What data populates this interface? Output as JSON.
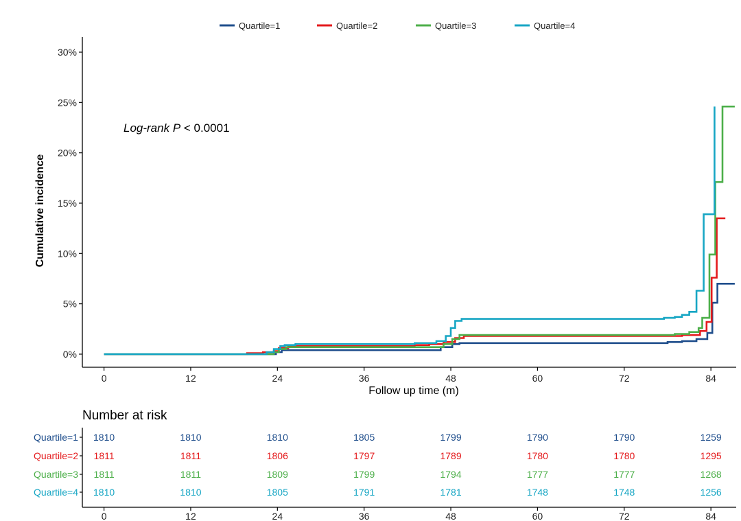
{
  "chart_data": {
    "type": "line",
    "xlabel": "Follow up time (m)",
    "ylabel": "Cumulative incidence",
    "xlim": [
      -3,
      87.5
    ],
    "ylim": [
      -1.3,
      31.5
    ],
    "x_ticks": [
      "0",
      "12",
      "24",
      "36",
      "48",
      "60",
      "72",
      "84"
    ],
    "x_tick_values": [
      0,
      12,
      24,
      36,
      48,
      60,
      72,
      84
    ],
    "y_ticks": [
      "0%",
      "5%",
      "10%",
      "15%",
      "20%",
      "25%",
      "30%"
    ],
    "y_tick_values": [
      0,
      5,
      10,
      15,
      20,
      25,
      30
    ],
    "annotation": {
      "italic": "Log-rank P",
      "rest": " < 0.0001"
    },
    "legend_position": "top",
    "grid": false,
    "series": [
      {
        "name": "Quartile=1",
        "color": "#1f4e8c",
        "points": [
          [
            0,
            0
          ],
          [
            23.8,
            0
          ],
          [
            23.8,
            0.2
          ],
          [
            24.6,
            0.2
          ],
          [
            24.6,
            0.4
          ],
          [
            46.6,
            0.4
          ],
          [
            46.6,
            0.7
          ],
          [
            48.2,
            0.7
          ],
          [
            48.2,
            1.0
          ],
          [
            49.2,
            1.0
          ],
          [
            49.2,
            1.1
          ],
          [
            78.0,
            1.1
          ],
          [
            78.0,
            1.2
          ],
          [
            80.0,
            1.2
          ],
          [
            80.0,
            1.3
          ],
          [
            82.0,
            1.3
          ],
          [
            82.0,
            1.5
          ],
          [
            83.5,
            1.5
          ],
          [
            83.5,
            2.1
          ],
          [
            84.2,
            2.1
          ],
          [
            84.2,
            5.1
          ],
          [
            84.9,
            5.1
          ],
          [
            84.9,
            7.0
          ],
          [
            87.3,
            7.0
          ]
        ]
      },
      {
        "name": "Quartile=2",
        "color": "#e41a1c",
        "points": [
          [
            0,
            0
          ],
          [
            19.8,
            0
          ],
          [
            19.8,
            0.1
          ],
          [
            22.0,
            0.1
          ],
          [
            22.0,
            0.2
          ],
          [
            23.5,
            0.2
          ],
          [
            23.5,
            0.3
          ],
          [
            24.2,
            0.3
          ],
          [
            24.2,
            0.6
          ],
          [
            25.5,
            0.6
          ],
          [
            25.5,
            0.8
          ],
          [
            43.0,
            0.8
          ],
          [
            43.0,
            0.9
          ],
          [
            45.0,
            0.9
          ],
          [
            45.0,
            1.0
          ],
          [
            47.0,
            1.0
          ],
          [
            47.0,
            1.2
          ],
          [
            48.6,
            1.2
          ],
          [
            48.6,
            1.6
          ],
          [
            49.8,
            1.6
          ],
          [
            49.8,
            1.8
          ],
          [
            80.0,
            1.8
          ],
          [
            80.0,
            1.9
          ],
          [
            82.5,
            1.9
          ],
          [
            82.5,
            2.3
          ],
          [
            83.4,
            2.3
          ],
          [
            83.4,
            3.2
          ],
          [
            84.1,
            3.2
          ],
          [
            84.1,
            7.6
          ],
          [
            84.8,
            7.6
          ],
          [
            84.8,
            13.5
          ],
          [
            86.0,
            13.5
          ]
        ]
      },
      {
        "name": "Quartile=3",
        "color": "#4daf4a",
        "points": [
          [
            0,
            0
          ],
          [
            23.5,
            0
          ],
          [
            23.5,
            0.2
          ],
          [
            24.2,
            0.2
          ],
          [
            24.2,
            0.5
          ],
          [
            25.2,
            0.5
          ],
          [
            25.2,
            0.7
          ],
          [
            47.0,
            0.7
          ],
          [
            47.0,
            1.0
          ],
          [
            48.2,
            1.0
          ],
          [
            48.2,
            1.5
          ],
          [
            49.2,
            1.5
          ],
          [
            49.2,
            1.9
          ],
          [
            79.0,
            1.9
          ],
          [
            79.0,
            2.0
          ],
          [
            81.0,
            2.0
          ],
          [
            81.0,
            2.2
          ],
          [
            82.3,
            2.2
          ],
          [
            82.3,
            2.6
          ],
          [
            82.8,
            2.6
          ],
          [
            82.8,
            3.6
          ],
          [
            83.8,
            3.6
          ],
          [
            83.8,
            9.9
          ],
          [
            84.6,
            9.9
          ],
          [
            84.6,
            17.1
          ],
          [
            85.6,
            17.1
          ],
          [
            85.6,
            24.6
          ],
          [
            87.3,
            24.6
          ]
        ]
      },
      {
        "name": "Quartile=4",
        "color": "#17a6c4",
        "points": [
          [
            0,
            0
          ],
          [
            22.5,
            0
          ],
          [
            22.5,
            0.2
          ],
          [
            23.5,
            0.2
          ],
          [
            23.5,
            0.5
          ],
          [
            24.4,
            0.5
          ],
          [
            24.4,
            0.8
          ],
          [
            25.0,
            0.8
          ],
          [
            25.0,
            0.9
          ],
          [
            26.5,
            0.9
          ],
          [
            26.5,
            1.0
          ],
          [
            43.0,
            1.0
          ],
          [
            43.0,
            1.1
          ],
          [
            46.0,
            1.1
          ],
          [
            46.0,
            1.3
          ],
          [
            47.3,
            1.3
          ],
          [
            47.3,
            1.8
          ],
          [
            48.0,
            1.8
          ],
          [
            48.0,
            2.6
          ],
          [
            48.6,
            2.6
          ],
          [
            48.6,
            3.3
          ],
          [
            49.5,
            3.3
          ],
          [
            49.5,
            3.5
          ],
          [
            77.5,
            3.5
          ],
          [
            77.5,
            3.6
          ],
          [
            79.0,
            3.6
          ],
          [
            79.0,
            3.7
          ],
          [
            80.0,
            3.7
          ],
          [
            80.0,
            3.9
          ],
          [
            81.0,
            3.9
          ],
          [
            81.0,
            4.2
          ],
          [
            82.0,
            4.2
          ],
          [
            82.0,
            6.3
          ],
          [
            83.0,
            6.3
          ],
          [
            83.0,
            13.9
          ],
          [
            84.5,
            13.9
          ],
          [
            84.5,
            24.6
          ]
        ]
      }
    ],
    "risk_table": {
      "title": "Number at risk",
      "times": [
        "0",
        "12",
        "24",
        "36",
        "48",
        "60",
        "72",
        "84"
      ],
      "time_values": [
        0,
        12,
        24,
        36,
        48,
        60,
        72,
        84
      ],
      "rows": [
        {
          "label": "Quartile=1",
          "color": "#1f4e8c",
          "values": [
            "1810",
            "1810",
            "1810",
            "1805",
            "1799",
            "1790",
            "1790",
            "1259"
          ]
        },
        {
          "label": "Quartile=2",
          "color": "#e41a1c",
          "values": [
            "1811",
            "1811",
            "1806",
            "1797",
            "1789",
            "1780",
            "1780",
            "1295"
          ]
        },
        {
          "label": "Quartile=3",
          "color": "#4daf4a",
          "values": [
            "1811",
            "1811",
            "1809",
            "1799",
            "1794",
            "1777",
            "1777",
            "1268"
          ]
        },
        {
          "label": "Quartile=4",
          "color": "#17a6c4",
          "values": [
            "1810",
            "1810",
            "1805",
            "1791",
            "1781",
            "1748",
            "1748",
            "1256"
          ]
        }
      ]
    }
  }
}
